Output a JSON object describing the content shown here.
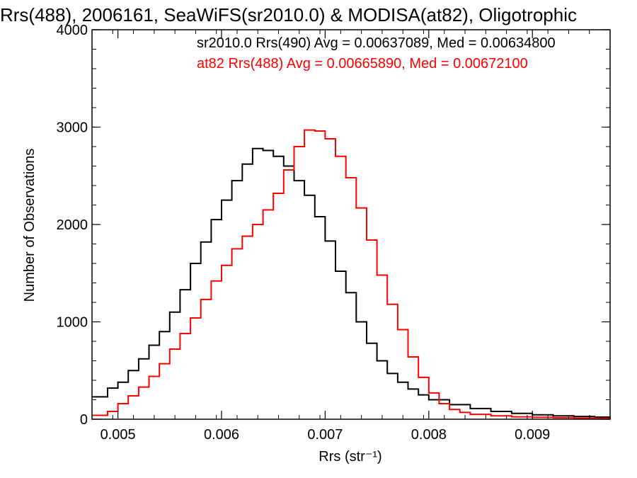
{
  "chart_data": {
    "type": "line",
    "title": "Rrs(488), 2006161, SeaWiFS(sr2010.0) & MODISA(at82), Oligotrophic",
    "xlabel": "Rrs (str⁻¹)",
    "ylabel": "Number of Observations",
    "xlim": [
      0.00475,
      0.00975
    ],
    "ylim": [
      0,
      4000
    ],
    "x_ticks": [
      {
        "value": 0.005,
        "label": "0.005"
      },
      {
        "value": 0.006,
        "label": "0.006"
      },
      {
        "value": 0.007,
        "label": "0.007"
      },
      {
        "value": 0.008,
        "label": "0.008"
      },
      {
        "value": 0.009,
        "label": "0.009"
      }
    ],
    "y_ticks": [
      {
        "value": 0,
        "label": "0"
      },
      {
        "value": 1000,
        "label": "1000"
      },
      {
        "value": 2000,
        "label": "2000"
      },
      {
        "value": 3000,
        "label": "3000"
      },
      {
        "value": 4000,
        "label": "4000"
      }
    ],
    "grid": false,
    "legend_position": "top-right",
    "annotations": [
      {
        "text": "sr2010.0 Rrs(490) Avg = 0.00637089, Med = 0.00634800",
        "color": "#000000"
      },
      {
        "text": "at82 Rrs(488) Avg = 0.00665890, Med = 0.00672100",
        "color": "#ff0000"
      }
    ],
    "series": [
      {
        "color": "#000000",
        "style": "step",
        "x": [
          0.00475,
          0.0049,
          0.005,
          0.0051,
          0.0052,
          0.0053,
          0.0054,
          0.0055,
          0.0056,
          0.0057,
          0.0058,
          0.0059,
          0.006,
          0.0061,
          0.0062,
          0.0063,
          0.0064,
          0.0065,
          0.0066,
          0.0067,
          0.0068,
          0.0069,
          0.007,
          0.0071,
          0.0072,
          0.0073,
          0.0074,
          0.0075,
          0.0076,
          0.0077,
          0.0078,
          0.0079,
          0.008,
          0.0082,
          0.0084,
          0.0086,
          0.0088,
          0.009,
          0.0092,
          0.0094,
          0.0096,
          0.00975
        ],
        "y": [
          230,
          320,
          380,
          500,
          620,
          760,
          900,
          1100,
          1330,
          1600,
          1820,
          2050,
          2250,
          2450,
          2620,
          2780,
          2760,
          2700,
          2600,
          2450,
          2300,
          2080,
          1830,
          1520,
          1300,
          1000,
          780,
          600,
          470,
          380,
          310,
          250,
          200,
          150,
          110,
          80,
          60,
          45,
          35,
          28,
          22,
          20
        ]
      },
      {
        "color": "#ff0000",
        "style": "step",
        "x": [
          0.00475,
          0.0049,
          0.005,
          0.0051,
          0.0052,
          0.0053,
          0.0054,
          0.0055,
          0.0056,
          0.0057,
          0.0058,
          0.0059,
          0.006,
          0.0061,
          0.0062,
          0.0063,
          0.0064,
          0.0065,
          0.0066,
          0.0067,
          0.0068,
          0.0069,
          0.007,
          0.0071,
          0.0072,
          0.0073,
          0.0074,
          0.0075,
          0.0076,
          0.0077,
          0.0078,
          0.0079,
          0.008,
          0.0081,
          0.0082,
          0.0083,
          0.0084,
          0.0086,
          0.0088,
          0.009,
          0.0092,
          0.0094,
          0.0096,
          0.00975
        ],
        "y": [
          40,
          80,
          160,
          240,
          330,
          440,
          570,
          720,
          880,
          1040,
          1230,
          1420,
          1580,
          1750,
          1880,
          2000,
          2150,
          2320,
          2560,
          2800,
          2970,
          2960,
          2880,
          2700,
          2480,
          2170,
          1840,
          1480,
          1180,
          920,
          640,
          430,
          270,
          160,
          100,
          70,
          50,
          35,
          25,
          20,
          15,
          12,
          10,
          8
        ]
      }
    ]
  }
}
